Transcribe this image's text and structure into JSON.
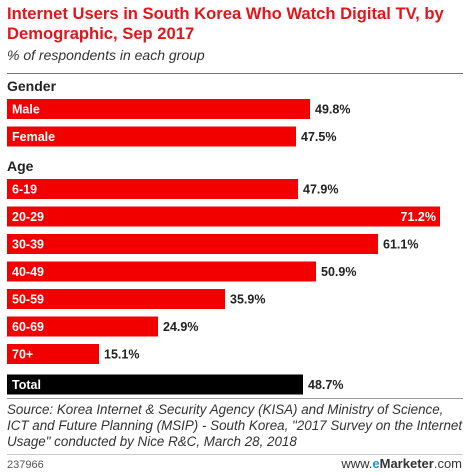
{
  "title": "Internet Users in South Korea Who Watch Digital TV, by Demographic, Sep 2017",
  "subtitle": "% of respondents in each group",
  "source": "Source: Korea Internet & Security Agency (KISA) and Ministry of Science, ICT and Future Planning (MSIP) - South Korea, \"2017 Survey on the Internet Usage\" conducted by Nice R&C, March 28, 2018",
  "chart_id": "237966",
  "brand": {
    "prefix": "www.",
    "e": "e",
    "name": "Marketer",
    "suffix": ".com"
  },
  "colors": {
    "bar": "#f20000",
    "total_bar": "#000000",
    "title": "#e4141b"
  },
  "chart_data": {
    "type": "bar",
    "orientation": "horizontal",
    "unit": "%",
    "xlim": [
      0,
      75
    ],
    "groups": [
      {
        "name": "Gender",
        "rows": [
          {
            "label": "Male",
            "value": 49.8,
            "value_label": "49.8%"
          },
          {
            "label": "Female",
            "value": 47.5,
            "value_label": "47.5%"
          }
        ]
      },
      {
        "name": "Age",
        "rows": [
          {
            "label": "6-19",
            "value": 47.9,
            "value_label": "47.9%"
          },
          {
            "label": "20-29",
            "value": 71.2,
            "value_label": "71.2%"
          },
          {
            "label": "30-39",
            "value": 61.1,
            "value_label": "61.1%"
          },
          {
            "label": "40-49",
            "value": 50.9,
            "value_label": "50.9%"
          },
          {
            "label": "50-59",
            "value": 35.9,
            "value_label": "35.9%"
          },
          {
            "label": "60-69",
            "value": 24.9,
            "value_label": "24.9%"
          },
          {
            "label": "70+",
            "value": 15.1,
            "value_label": "15.1%"
          }
        ]
      },
      {
        "name": "",
        "rows": [
          {
            "label": "Total",
            "value": 48.7,
            "value_label": "48.7%",
            "total": true
          }
        ]
      }
    ]
  }
}
